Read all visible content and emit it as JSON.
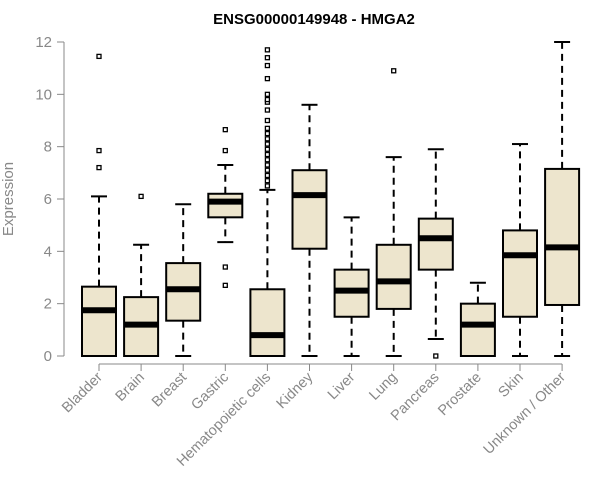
{
  "chart_data": {
    "type": "boxplot",
    "title": "ENSG00000149948 - HMGA2",
    "ylabel": "Expression",
    "xlabel": "",
    "ylim": [
      0,
      12
    ],
    "yticks": [
      0,
      2,
      4,
      6,
      8,
      10,
      12
    ],
    "colors": {
      "box_fill": "#ede5cd",
      "stroke": "#000000",
      "axis_text": "#888888"
    },
    "categories": [
      "Bladder",
      "Brain",
      "Breast",
      "Gastric",
      "Hematopoietic cells",
      "Kidney",
      "Liver",
      "Lung",
      "Pancreas",
      "Prostate",
      "Skin",
      "Unknown / Other"
    ],
    "boxes": [
      {
        "name": "Bladder",
        "whisker_low": 0,
        "q1": 0,
        "median": 1.75,
        "q3": 2.65,
        "whisker_high": 6.1,
        "outliers": [
          7.2,
          7.85,
          11.45
        ]
      },
      {
        "name": "Brain",
        "whisker_low": 0,
        "q1": 0,
        "median": 1.2,
        "q3": 2.25,
        "whisker_high": 4.25,
        "outliers": [
          6.1
        ]
      },
      {
        "name": "Breast",
        "whisker_low": 0,
        "q1": 1.35,
        "median": 2.55,
        "q3": 3.55,
        "whisker_high": 5.8,
        "outliers": []
      },
      {
        "name": "Gastric",
        "whisker_low": 4.35,
        "q1": 5.3,
        "median": 5.9,
        "q3": 6.2,
        "whisker_high": 7.3,
        "outliers": [
          2.7,
          3.4,
          7.85,
          8.65
        ]
      },
      {
        "name": "Hematopoietic cells",
        "whisker_low": 0,
        "q1": 0,
        "median": 0.8,
        "q3": 2.55,
        "whisker_high": 6.35,
        "outliers": [
          6.5,
          6.7,
          6.9,
          7.1,
          7.3,
          7.5,
          7.7,
          7.9,
          8.1,
          8.3,
          8.5,
          8.7,
          9.0,
          9.4,
          9.7,
          9.8,
          10.0,
          10.6,
          11.1,
          11.4,
          11.7
        ]
      },
      {
        "name": "Kidney",
        "whisker_low": 0,
        "q1": 4.1,
        "median": 6.15,
        "q3": 7.1,
        "whisker_high": 9.6,
        "outliers": []
      },
      {
        "name": "Liver",
        "whisker_low": 0,
        "q1": 1.5,
        "median": 2.5,
        "q3": 3.3,
        "whisker_high": 5.3,
        "outliers": []
      },
      {
        "name": "Lung",
        "whisker_low": 0,
        "q1": 1.8,
        "median": 2.85,
        "q3": 4.25,
        "whisker_high": 7.6,
        "outliers": [
          10.9
        ]
      },
      {
        "name": "Pancreas",
        "whisker_low": 0.65,
        "q1": 3.3,
        "median": 4.5,
        "q3": 5.25,
        "whisker_high": 7.9,
        "outliers": [
          0
        ]
      },
      {
        "name": "Prostate",
        "whisker_low": 0,
        "q1": 0,
        "median": 1.2,
        "q3": 2.0,
        "whisker_high": 2.8,
        "outliers": []
      },
      {
        "name": "Skin",
        "whisker_low": 0,
        "q1": 1.5,
        "median": 3.85,
        "q3": 4.8,
        "whisker_high": 8.1,
        "outliers": []
      },
      {
        "name": "Unknown / Other",
        "whisker_low": 0,
        "q1": 1.95,
        "median": 4.15,
        "q3": 7.15,
        "whisker_high": 12.0,
        "outliers": []
      }
    ]
  }
}
